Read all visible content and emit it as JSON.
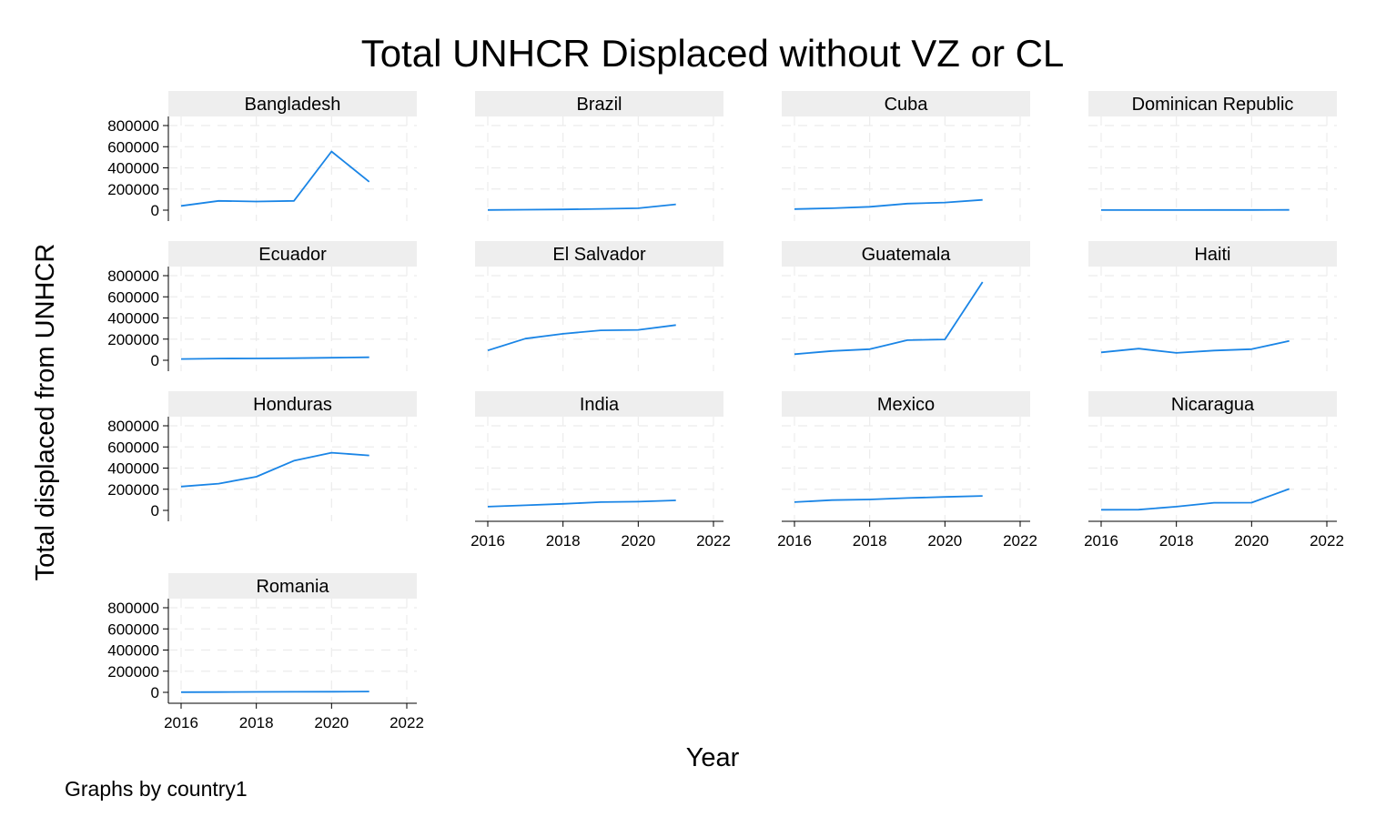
{
  "chart_data": {
    "type": "line",
    "title": "Total UNHCR Displaced without VZ or CL",
    "xlabel": "Year",
    "ylabel": "Total displaced from UNHCR",
    "note": "Graphs by country1",
    "xlim": [
      2016,
      2022
    ],
    "ylim": [
      0,
      800000
    ],
    "x_ticks": [
      2016,
      2018,
      2020,
      2022
    ],
    "y_ticks": [
      0,
      200000,
      400000,
      600000,
      800000
    ],
    "line_color": "#1a85e6",
    "grid": true,
    "x": [
      2016,
      2017,
      2018,
      2019,
      2020,
      2021
    ],
    "panels": [
      {
        "name": "Bangladesh",
        "values": [
          40000,
          88000,
          82000,
          88000,
          555000,
          268000
        ]
      },
      {
        "name": "Brazil",
        "values": [
          2000,
          4000,
          7000,
          12000,
          18000,
          55000
        ]
      },
      {
        "name": "Cuba",
        "values": [
          10000,
          18000,
          32000,
          62000,
          72000,
          97000
        ]
      },
      {
        "name": "Dominican Republic",
        "values": [
          1000,
          1000,
          1000,
          2000,
          2000,
          3000
        ]
      },
      {
        "name": "Ecuador",
        "values": [
          12000,
          16000,
          17000,
          20000,
          24000,
          28000
        ]
      },
      {
        "name": "El Salvador",
        "values": [
          93000,
          205000,
          250000,
          283000,
          287000,
          333000
        ]
      },
      {
        "name": "Guatemala",
        "values": [
          58000,
          88000,
          105000,
          190000,
          197000,
          740000
        ]
      },
      {
        "name": "Haiti",
        "values": [
          75000,
          110000,
          70000,
          92000,
          105000,
          183000
        ]
      },
      {
        "name": "Honduras",
        "values": [
          225000,
          253000,
          318000,
          470000,
          545000,
          520000
        ]
      },
      {
        "name": "India",
        "values": [
          35000,
          48000,
          62000,
          78000,
          83000,
          95000
        ]
      },
      {
        "name": "Mexico",
        "values": [
          78000,
          97000,
          103000,
          117000,
          127000,
          137000
        ]
      },
      {
        "name": "Nicaragua",
        "values": [
          6000,
          7000,
          35000,
          72000,
          73000,
          203000
        ]
      },
      {
        "name": "Romania",
        "values": [
          2000,
          3000,
          4000,
          5000,
          6000,
          8000
        ]
      }
    ]
  }
}
